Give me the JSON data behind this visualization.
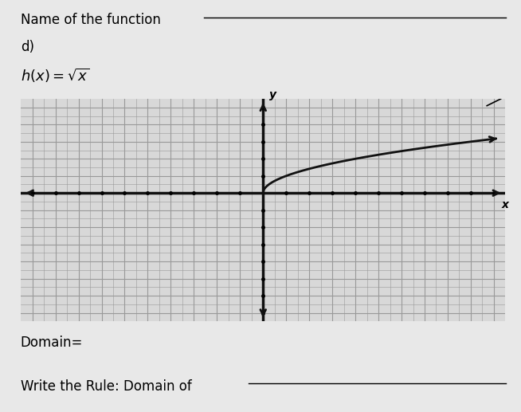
{
  "title_line1": "Name of the function",
  "title_line2": "d)",
  "domain_label": "Domain=",
  "rule_label": "Write the Rule: Domain of",
  "page_bg": "#e8e8e8",
  "graph_bg": "#d8d8d8",
  "grid_color": "#999999",
  "axis_color": "#111111",
  "curve_color": "#111111",
  "x_min": -10,
  "x_max": 10,
  "y_min": -7,
  "y_max": 5,
  "x_label": "x",
  "y_label": "y",
  "underline_color": "#333333"
}
